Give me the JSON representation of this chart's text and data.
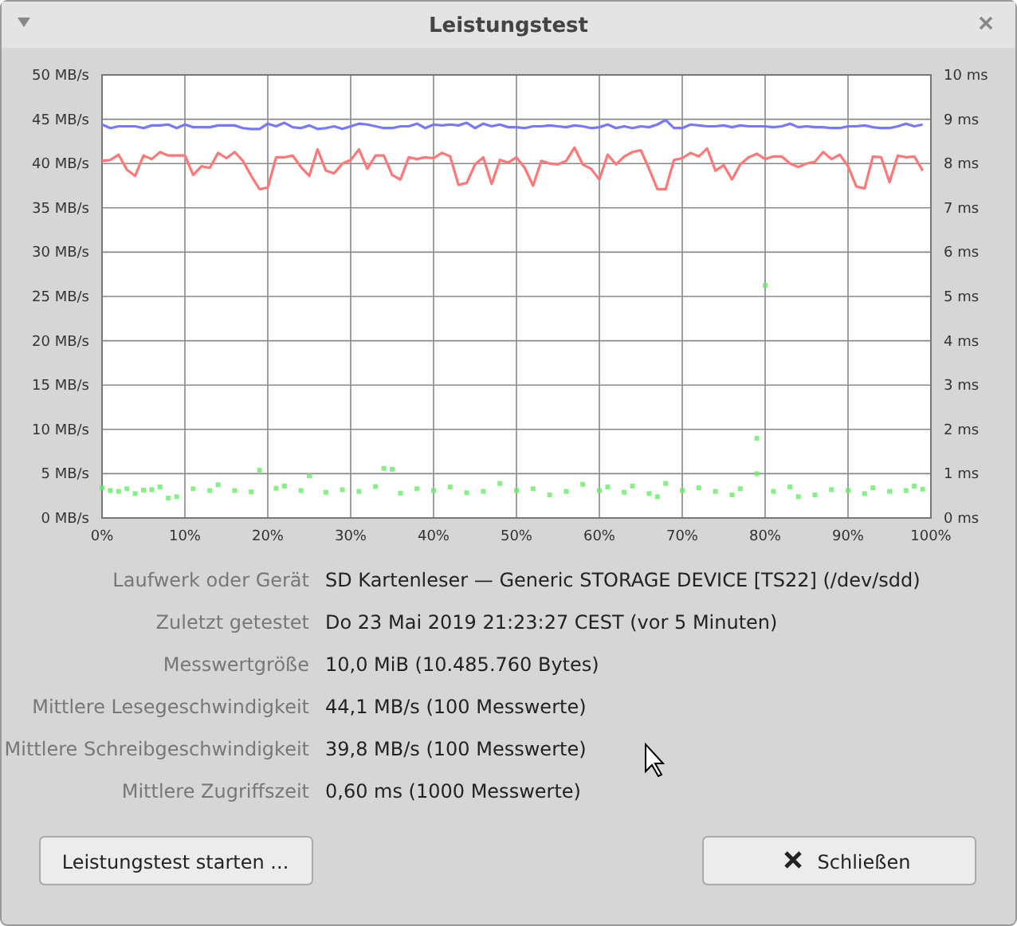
{
  "chart_data": [
    {
      "type": "line",
      "title": "Leistungstest",
      "x": [
        0,
        1,
        2,
        3,
        4,
        5,
        6,
        7,
        8,
        9,
        10,
        11,
        12,
        13,
        14,
        15,
        16,
        17,
        18,
        19,
        20,
        21,
        22,
        23,
        24,
        25,
        26,
        27,
        28,
        29,
        30,
        31,
        32,
        33,
        34,
        35,
        36,
        37,
        38,
        39,
        40,
        41,
        42,
        43,
        44,
        45,
        46,
        47,
        48,
        49,
        50,
        51,
        52,
        53,
        54,
        55,
        56,
        57,
        58,
        59,
        60,
        61,
        62,
        63,
        64,
        65,
        66,
        67,
        68,
        69,
        70,
        71,
        72,
        73,
        74,
        75,
        76,
        77,
        78,
        79,
        80,
        81,
        82,
        83,
        84,
        85,
        86,
        87,
        88,
        89,
        90,
        91,
        92,
        93,
        94,
        95,
        96,
        97,
        98,
        99
      ],
      "series": [
        {
          "color": "#7777ff",
          "values": [
            44.4,
            44.0,
            44.2,
            44.2,
            44.2,
            44.0,
            44.3,
            44.3,
            44.4,
            44.0,
            44.4,
            44.1,
            44.1,
            44.1,
            44.3,
            44.3,
            44.3,
            44.0,
            43.9,
            43.9,
            44.5,
            44.2,
            44.6,
            44.1,
            44.0,
            44.3,
            43.9,
            44.0,
            44.2,
            43.9,
            44.2,
            44.5,
            44.4,
            44.2,
            44.0,
            44.0,
            44.2,
            44.2,
            44.5,
            44.0,
            44.4,
            44.3,
            44.4,
            44.3,
            44.6,
            44.0,
            44.5,
            44.2,
            44.4,
            44.1,
            44.1,
            44.0,
            44.2,
            44.2,
            44.3,
            44.2,
            44.1,
            44.3,
            44.2,
            44.0,
            44.1,
            44.4,
            44.0,
            44.2,
            44.0,
            44.2,
            44.1,
            44.4,
            44.9,
            44.0,
            44.0,
            44.4,
            44.3,
            44.2,
            44.2,
            44.3,
            44.1,
            44.3,
            44.2,
            44.2,
            44.2,
            44.1,
            44.2,
            44.5,
            44.1,
            44.2,
            44.1,
            44.1,
            44.0,
            44.0,
            44.2,
            44.2,
            44.3,
            44.1,
            44.0,
            44.0,
            44.2,
            44.5,
            44.2,
            44.4
          ]
        },
        {
          "color": "#ff7777",
          "values": [
            40.3,
            40.4,
            41.0,
            39.3,
            38.6,
            40.9,
            40.5,
            41.3,
            40.9,
            40.9,
            40.9,
            38.7,
            39.7,
            39.5,
            41.2,
            40.6,
            41.3,
            40.3,
            38.6,
            37.1,
            37.3,
            40.7,
            40.7,
            40.9,
            39.6,
            38.6,
            41.6,
            39.2,
            38.9,
            40.0,
            40.4,
            41.6,
            39.4,
            40.9,
            40.9,
            38.7,
            38.2,
            40.7,
            40.5,
            40.7,
            40.6,
            41.2,
            40.8,
            37.6,
            37.8,
            39.9,
            40.7,
            37.7,
            40.4,
            40.1,
            40.7,
            39.5,
            37.5,
            40.3,
            40.0,
            39.9,
            40.3,
            41.8,
            39.9,
            39.4,
            38.2,
            41.0,
            39.9,
            40.8,
            41.3,
            41.5,
            39.4,
            37.1,
            37.1,
            40.4,
            40.6,
            41.2,
            40.8,
            41.7,
            39.2,
            39.8,
            38.2,
            39.9,
            40.7,
            41.1,
            40.5,
            40.8,
            40.8,
            40.0,
            39.6,
            40.0,
            40.2,
            41.3,
            40.5,
            41.0,
            39.7,
            37.4,
            37.2,
            40.8,
            40.7,
            37.9,
            40.9,
            40.7,
            40.8,
            39.2
          ]
        },
        {
          "type": "scatter",
          "axis": "y2",
          "marker": "square",
          "color": "#66ee66",
          "x": [
            0,
            1,
            2,
            3,
            4,
            5,
            6,
            7,
            8,
            9,
            11,
            13,
            14,
            16,
            18,
            19,
            21,
            22,
            24,
            25,
            27,
            29,
            31,
            33,
            34,
            35,
            36,
            38,
            40,
            42,
            44,
            46,
            48,
            50,
            52,
            54,
            56,
            58,
            60,
            61,
            63,
            64,
            66,
            67,
            68,
            70,
            72,
            74,
            76,
            77,
            79,
            79,
            80,
            81,
            83,
            84,
            86,
            88,
            90,
            92,
            93,
            95,
            97,
            98,
            99
          ],
          "values": [
            0.68,
            0.62,
            0.6,
            0.66,
            0.55,
            0.63,
            0.64,
            0.7,
            0.45,
            0.48,
            0.66,
            0.62,
            0.75,
            0.62,
            0.59,
            1.08,
            0.67,
            0.72,
            0.62,
            0.95,
            0.58,
            0.64,
            0.6,
            0.71,
            1.12,
            1.1,
            0.56,
            0.66,
            0.62,
            0.7,
            0.57,
            0.6,
            0.78,
            0.62,
            0.66,
            0.52,
            0.6,
            0.76,
            0.62,
            0.7,
            0.58,
            0.72,
            0.55,
            0.48,
            0.78,
            0.62,
            0.68,
            0.6,
            0.52,
            0.66,
            1.0,
            1.8,
            5.25,
            0.6,
            0.7,
            0.48,
            0.52,
            0.64,
            0.62,
            0.55,
            0.68,
            0.6,
            0.62,
            0.72,
            0.65
          ]
        }
      ],
      "xlim": [
        0,
        100
      ],
      "xticks": [
        {
          "value": 0,
          "label": "0%"
        },
        {
          "value": 10,
          "label": "10%"
        },
        {
          "value": 20,
          "label": "20%"
        },
        {
          "value": 30,
          "label": "30%"
        },
        {
          "value": 40,
          "label": "40%"
        },
        {
          "value": 50,
          "label": "50%"
        },
        {
          "value": 60,
          "label": "60%"
        },
        {
          "value": 70,
          "label": "70%"
        },
        {
          "value": 80,
          "label": "80%"
        },
        {
          "value": 90,
          "label": "90%"
        },
        {
          "value": 100,
          "label": "100%"
        }
      ],
      "ylim": [
        0,
        50
      ],
      "yticks": [
        {
          "value": 0,
          "label": "0 MB/s"
        },
        {
          "value": 5,
          "label": "5 MB/s"
        },
        {
          "value": 10,
          "label": "10 MB/s"
        },
        {
          "value": 15,
          "label": "15 MB/s"
        },
        {
          "value": 20,
          "label": "20 MB/s"
        },
        {
          "value": 25,
          "label": "25 MB/s"
        },
        {
          "value": 30,
          "label": "30 MB/s"
        },
        {
          "value": 35,
          "label": "35 MB/s"
        },
        {
          "value": 40,
          "label": "40 MB/s"
        },
        {
          "value": 45,
          "label": "45 MB/s"
        },
        {
          "value": 50,
          "label": "50 MB/s"
        }
      ],
      "y2lim": [
        0,
        10
      ],
      "y2ticks": [
        {
          "value": 0,
          "label": "0 ms"
        },
        {
          "value": 1,
          "label": "1 ms"
        },
        {
          "value": 2,
          "label": "2 ms"
        },
        {
          "value": 3,
          "label": "3 ms"
        },
        {
          "value": 4,
          "label": "4 ms"
        },
        {
          "value": 5,
          "label": "5 ms"
        },
        {
          "value": 6,
          "label": "6 ms"
        },
        {
          "value": 7,
          "label": "7 ms"
        },
        {
          "value": 8,
          "label": "8 ms"
        },
        {
          "value": 9,
          "label": "9 ms"
        },
        {
          "value": 10,
          "label": "10 ms"
        }
      ],
      "grid": true,
      "marker": "none",
      "line_style": "solid"
    },
    {
      "type": "other",
      "categories": [
        "Laufwerk oder Gerät",
        "Zuletzt getestet",
        "Messwertgröße",
        "Mittlere Lesegeschwindigkeit",
        "Mittlere Schreibgeschwindigkeit",
        "Mittlere Zugriffszeit"
      ],
      "annotations": [
        "SD Kartenleser — Generic STORAGE DEVICE [TS22] (/dev/sdd)",
        "Do 23 Mai 2019 21:23:27 CEST (vor 5 Minuten)",
        "10,0 MiB (10.485.760 Bytes)",
        "44,1 MB/s (100 Messwerte)",
        "39,8 MB/s (100 Messwerte)",
        "0,60 ms (1000 Messwerte)",
        "Leistungstest starten ...",
        "Schließen"
      ]
    }
  ]
}
